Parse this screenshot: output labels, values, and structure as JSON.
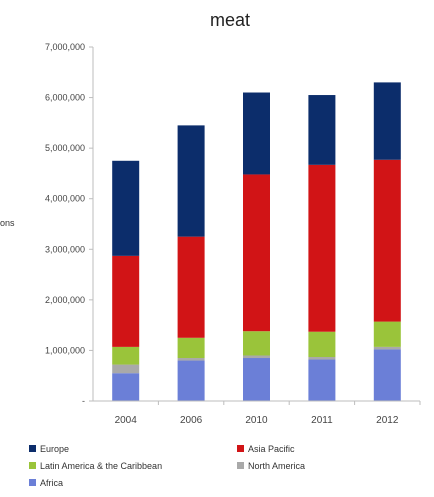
{
  "chart_data": {
    "type": "bar",
    "stacked": true,
    "title": "meat",
    "ylabel": "ons",
    "xlabel": "",
    "categories": [
      "2004",
      "2006",
      "2010",
      "2011",
      "2012"
    ],
    "ylim": [
      0,
      7000000
    ],
    "yticks": [
      0,
      1000000,
      2000000,
      3000000,
      4000000,
      5000000,
      6000000,
      7000000
    ],
    "ytick_labels": [
      "-",
      "1,000,000",
      "2,000,000",
      "3,000,000",
      "4,000,000",
      "5,000,000",
      "6,000,000",
      "7,000,000"
    ],
    "series": [
      {
        "name": "Africa",
        "color": "#6b7fd7",
        "values": [
          550000,
          800000,
          850000,
          820000,
          1020000
        ]
      },
      {
        "name": "North America",
        "color": "#a9a9a9",
        "values": [
          170000,
          50000,
          50000,
          50000,
          50000
        ]
      },
      {
        "name": "Latin America & the Caribbean",
        "color": "#9ac43a",
        "values": [
          350000,
          400000,
          480000,
          500000,
          500000
        ]
      },
      {
        "name": "Asia Pacific",
        "color": "#d11416",
        "values": [
          1800000,
          2000000,
          3100000,
          3300000,
          3200000
        ]
      },
      {
        "name": "Europe",
        "color": "#0c2d6b",
        "values": [
          1880000,
          2200000,
          1620000,
          1380000,
          1530000
        ]
      }
    ],
    "legend": {
      "position": "bottom",
      "entries": [
        "Europe",
        "Asia Pacific",
        "Latin America & the Caribbean",
        "North America",
        "Africa"
      ]
    },
    "grid": false
  }
}
